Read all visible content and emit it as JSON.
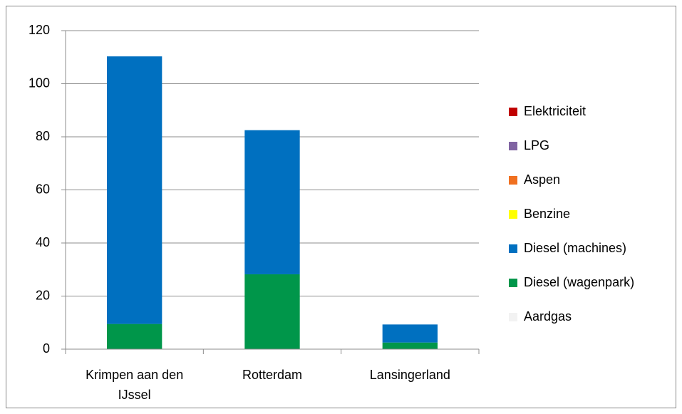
{
  "chart_data": {
    "type": "stacked_bar",
    "categories": [
      "Krimpen aan den IJssel",
      "Rotterdam",
      "Lansingerland"
    ],
    "series": [
      {
        "name": "Aardgas",
        "color": "#f2f2f2",
        "values": [
          0,
          0,
          0
        ]
      },
      {
        "name": "Diesel (wagenpark)",
        "color": "#00964a",
        "values": [
          9.5,
          28.2,
          2.5
        ]
      },
      {
        "name": "Diesel (machines)",
        "color": "#0070c0",
        "values": [
          100.8,
          54.3,
          6.8
        ]
      },
      {
        "name": "Benzine",
        "color": "#ffff00",
        "values": [
          0,
          0,
          0
        ]
      },
      {
        "name": "Aspen",
        "color": "#f07020",
        "values": [
          0,
          0,
          0
        ]
      },
      {
        "name": "LPG",
        "color": "#8064a2",
        "values": [
          0,
          0,
          0
        ]
      },
      {
        "name": "Elektriciteit",
        "color": "#c00000",
        "values": [
          0,
          0,
          0
        ]
      }
    ],
    "ylim": [
      0,
      120
    ],
    "yticks": [
      0,
      20,
      40,
      60,
      80,
      100,
      120
    ],
    "grid": true,
    "legend": "right"
  }
}
